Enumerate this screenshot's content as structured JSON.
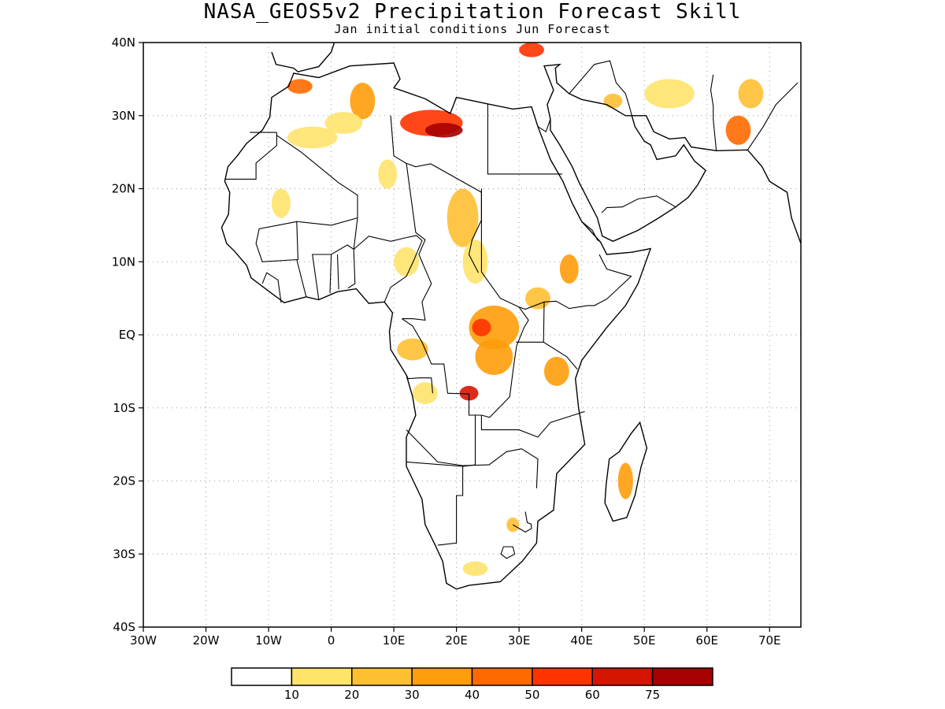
{
  "title": "NASA_GEOS5v2 Precipitation Forecast Skill",
  "subtitle": "Jan initial conditions  Jun Forecast",
  "map": {
    "lon_range": [
      -30,
      75
    ],
    "lat_range": [
      -40,
      40
    ],
    "lat_ticks": [
      {
        "value": 40,
        "label": "40N"
      },
      {
        "value": 30,
        "label": "30N"
      },
      {
        "value": 20,
        "label": "20N"
      },
      {
        "value": 10,
        "label": "10N"
      },
      {
        "value": 0,
        "label": "EQ"
      },
      {
        "value": -10,
        "label": "10S"
      },
      {
        "value": -20,
        "label": "20S"
      },
      {
        "value": -30,
        "label": "30S"
      },
      {
        "value": -40,
        "label": "40S"
      }
    ],
    "lon_ticks": [
      {
        "value": -30,
        "label": "30W"
      },
      {
        "value": -20,
        "label": "20W"
      },
      {
        "value": -10,
        "label": "10W"
      },
      {
        "value": 0,
        "label": "0"
      },
      {
        "value": 10,
        "label": "10E"
      },
      {
        "value": 20,
        "label": "20E"
      },
      {
        "value": 30,
        "label": "30E"
      },
      {
        "value": 40,
        "label": "40E"
      },
      {
        "value": 50,
        "label": "50E"
      },
      {
        "value": 60,
        "label": "60E"
      },
      {
        "value": 70,
        "label": "70E"
      }
    ],
    "grid": "dotted",
    "skill_blobs": [
      {
        "lon": -5,
        "lat": 34,
        "rx": 2,
        "ry": 1,
        "level": 4
      },
      {
        "lon": 5,
        "lat": 32,
        "rx": 2,
        "ry": 2.5,
        "level": 3
      },
      {
        "lon": 2,
        "lat": 29,
        "rx": 3,
        "ry": 1.5,
        "level": 1
      },
      {
        "lon": -3,
        "lat": 27,
        "rx": 4,
        "ry": 1.5,
        "level": 1
      },
      {
        "lon": 16,
        "lat": 29,
        "rx": 5,
        "ry": 1.8,
        "level": 5
      },
      {
        "lon": 18,
        "lat": 28,
        "rx": 3,
        "ry": 1,
        "level": 7
      },
      {
        "lon": 32,
        "lat": 39,
        "rx": 2,
        "ry": 1,
        "level": 5
      },
      {
        "lon": 45,
        "lat": 32,
        "rx": 1.5,
        "ry": 1,
        "level": 2
      },
      {
        "lon": 54,
        "lat": 33,
        "rx": 4,
        "ry": 2,
        "level": 1
      },
      {
        "lon": 65,
        "lat": 28,
        "rx": 2,
        "ry": 2,
        "level": 4
      },
      {
        "lon": 67,
        "lat": 33,
        "rx": 2,
        "ry": 2,
        "level": 2
      },
      {
        "lon": 9,
        "lat": 22,
        "rx": 1.5,
        "ry": 2,
        "level": 1
      },
      {
        "lon": -8,
        "lat": 18,
        "rx": 1.5,
        "ry": 2,
        "level": 1
      },
      {
        "lon": 21,
        "lat": 16,
        "rx": 2.5,
        "ry": 4,
        "level": 2
      },
      {
        "lon": 23,
        "lat": 10,
        "rx": 2,
        "ry": 3,
        "level": 1
      },
      {
        "lon": 12,
        "lat": 10,
        "rx": 2,
        "ry": 2,
        "level": 1
      },
      {
        "lon": 38,
        "lat": 9,
        "rx": 1.5,
        "ry": 2,
        "level": 3
      },
      {
        "lon": 26,
        "lat": 1,
        "rx": 4,
        "ry": 3,
        "level": 3
      },
      {
        "lon": 24,
        "lat": 1,
        "rx": 1.5,
        "ry": 1.2,
        "level": 5
      },
      {
        "lon": 26,
        "lat": -3,
        "rx": 3,
        "ry": 2.5,
        "level": 3
      },
      {
        "lon": 22,
        "lat": -8,
        "rx": 1.5,
        "ry": 1,
        "level": 6
      },
      {
        "lon": 13,
        "lat": -2,
        "rx": 2.5,
        "ry": 1.5,
        "level": 2
      },
      {
        "lon": 15,
        "lat": -8,
        "rx": 2,
        "ry": 1.5,
        "level": 1
      },
      {
        "lon": 36,
        "lat": -5,
        "rx": 2,
        "ry": 2,
        "level": 3
      },
      {
        "lon": 33,
        "lat": 5,
        "rx": 2,
        "ry": 1.5,
        "level": 2
      },
      {
        "lon": 47,
        "lat": -20,
        "rx": 1.2,
        "ry": 2.5,
        "level": 3
      },
      {
        "lon": 23,
        "lat": -32,
        "rx": 2,
        "ry": 1,
        "level": 1
      },
      {
        "lon": 29,
        "lat": -26,
        "rx": 1,
        "ry": 1,
        "level": 2
      }
    ],
    "land_color": "#ffffff",
    "ocean_color": "#ffffff",
    "border_color": "#000000"
  },
  "legend": {
    "labels": [
      "10",
      "20",
      "30",
      "40",
      "50",
      "60",
      "75"
    ],
    "colors": [
      "#ffffff",
      "#ffe36b",
      "#ffbf33",
      "#ff9d0a",
      "#ff6a00",
      "#ff3300",
      "#d61500",
      "#a60000"
    ]
  }
}
